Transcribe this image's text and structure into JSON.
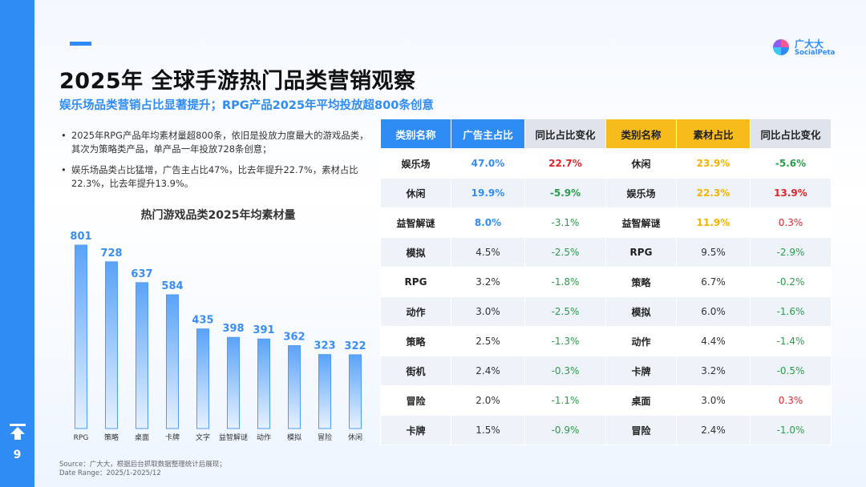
{
  "page": {
    "number": "9",
    "title": "2025年 全球手游热门品类营销观察",
    "subtitle": "娱乐场品类营销占比显著提升；RPG产品2025年平均投放超800条创意",
    "logo_cn": "广大大",
    "logo_en": "SocialPeta",
    "bullets": [
      "2025年RPG产品年均素材量超800条，依旧是投放力度最大的游戏品类，其次为策略类产品，单产品一年投放728条创意；",
      "娱乐场品类占比猛增，广告主占比47%，比去年提升22.7%，素材占比22.3%，比去年提升13.9%。"
    ],
    "source_line1": "Source：广大大，根据后台抓取数据整理统计后展现；",
    "source_line2": "Date Range：2025/1-2025/12"
  },
  "colors": {
    "accent": "#2f8cf5",
    "yellow": "#f7bb1c",
    "positive": "#e0242a",
    "negative": "#2a9d4a"
  },
  "chart_data": {
    "type": "bar",
    "title": "热门游戏品类2025年均素材量",
    "categories": [
      "RPG",
      "策略",
      "桌面",
      "卡牌",
      "文字",
      "益智解谜",
      "动作",
      "模拟",
      "冒险",
      "休闲"
    ],
    "values": [
      801,
      728,
      637,
      584,
      435,
      398,
      391,
      362,
      323,
      322
    ],
    "ylim": [
      0,
      801
    ]
  },
  "table": {
    "headers": [
      "类别名称",
      "广告主占比",
      "同比占比变化",
      "类别名称",
      "素材占比",
      "同比占比变化"
    ],
    "rows": [
      [
        "娱乐场",
        "47.0%",
        "22.7%",
        "休闲",
        "23.9%",
        "-5.6%"
      ],
      [
        "休闲",
        "19.9%",
        "-5.9%",
        "娱乐场",
        "22.3%",
        "13.9%"
      ],
      [
        "益智解谜",
        "8.0%",
        "-3.1%",
        "益智解谜",
        "11.9%",
        "0.3%"
      ],
      [
        "模拟",
        "4.5%",
        "-2.5%",
        "RPG",
        "9.5%",
        "-2.9%"
      ],
      [
        "RPG",
        "3.2%",
        "-1.8%",
        "策略",
        "6.7%",
        "-0.2%"
      ],
      [
        "动作",
        "3.0%",
        "-2.5%",
        "模拟",
        "6.0%",
        "-1.6%"
      ],
      [
        "策略",
        "2.5%",
        "-1.3%",
        "动作",
        "4.4%",
        "-1.4%"
      ],
      [
        "街机",
        "2.4%",
        "-0.3%",
        "卡牌",
        "3.2%",
        "-0.5%"
      ],
      [
        "冒险",
        "2.0%",
        "-1.1%",
        "桌面",
        "3.0%",
        "0.3%"
      ],
      [
        "卡牌",
        "1.5%",
        "-0.9%",
        "冒险",
        "2.4%",
        "-1.0%"
      ]
    ]
  }
}
